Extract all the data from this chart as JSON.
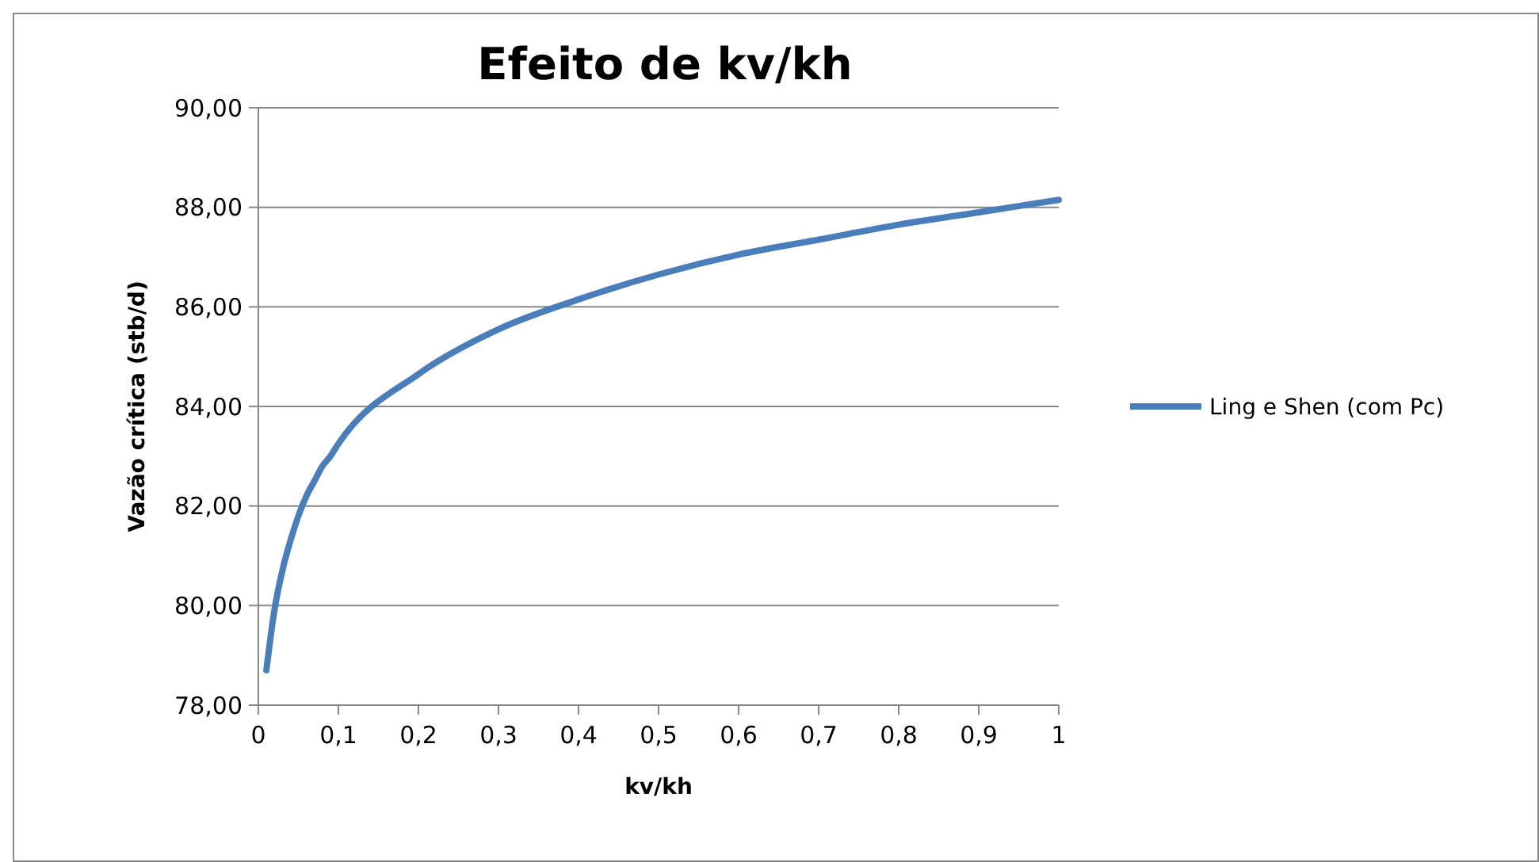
{
  "chart_data": {
    "type": "line",
    "title": "Efeito de kv/kh",
    "xlabel": "kv/kh",
    "ylabel": "Vazão crítica (stb/d)",
    "x": [
      0.01,
      0.02,
      0.03,
      0.04,
      0.05,
      0.06,
      0.07,
      0.08,
      0.09,
      0.1,
      0.2,
      0.3,
      0.4,
      0.5,
      0.6,
      0.7,
      0.8,
      0.9,
      1
    ],
    "series": [
      {
        "name": "Ling e Shen (com Pc)",
        "color": "#4a7ebb",
        "values": [
          78.7,
          79.9,
          80.7,
          81.3,
          81.8,
          82.2,
          82.5,
          82.8,
          83.0,
          83.25,
          84.65,
          85.55,
          86.15,
          86.65,
          87.05,
          87.35,
          87.65,
          87.9,
          88.15
        ]
      }
    ],
    "xlim": [
      0,
      1
    ],
    "xticks": [
      0,
      {
        "value": 0.1,
        "label": "0,1"
      },
      {
        "value": 0.2,
        "label": "0,2"
      },
      {
        "value": 0.3,
        "label": "0,3"
      },
      {
        "value": 0.4,
        "label": "0,4"
      },
      {
        "value": 0.5,
        "label": "0,5"
      },
      {
        "value": 0.6,
        "label": "0,6"
      },
      {
        "value": 0.7,
        "label": "0,7"
      },
      {
        "value": 0.8,
        "label": "0,8"
      },
      {
        "value": 0.9,
        "label": "0,9"
      },
      1
    ],
    "ylim": [
      78,
      90
    ],
    "yticks": [
      {
        "value": 78,
        "label": "78,00"
      },
      {
        "value": 80,
        "label": "80,00"
      },
      {
        "value": 82,
        "label": "82,00"
      },
      {
        "value": 84,
        "label": "84,00"
      },
      {
        "value": 86,
        "label": "86,00"
      },
      {
        "value": 88,
        "label": "88,00"
      },
      {
        "value": 90,
        "label": "90,00"
      }
    ],
    "grid": "y",
    "legend": "right",
    "marker": "none",
    "line_style": "solid"
  }
}
